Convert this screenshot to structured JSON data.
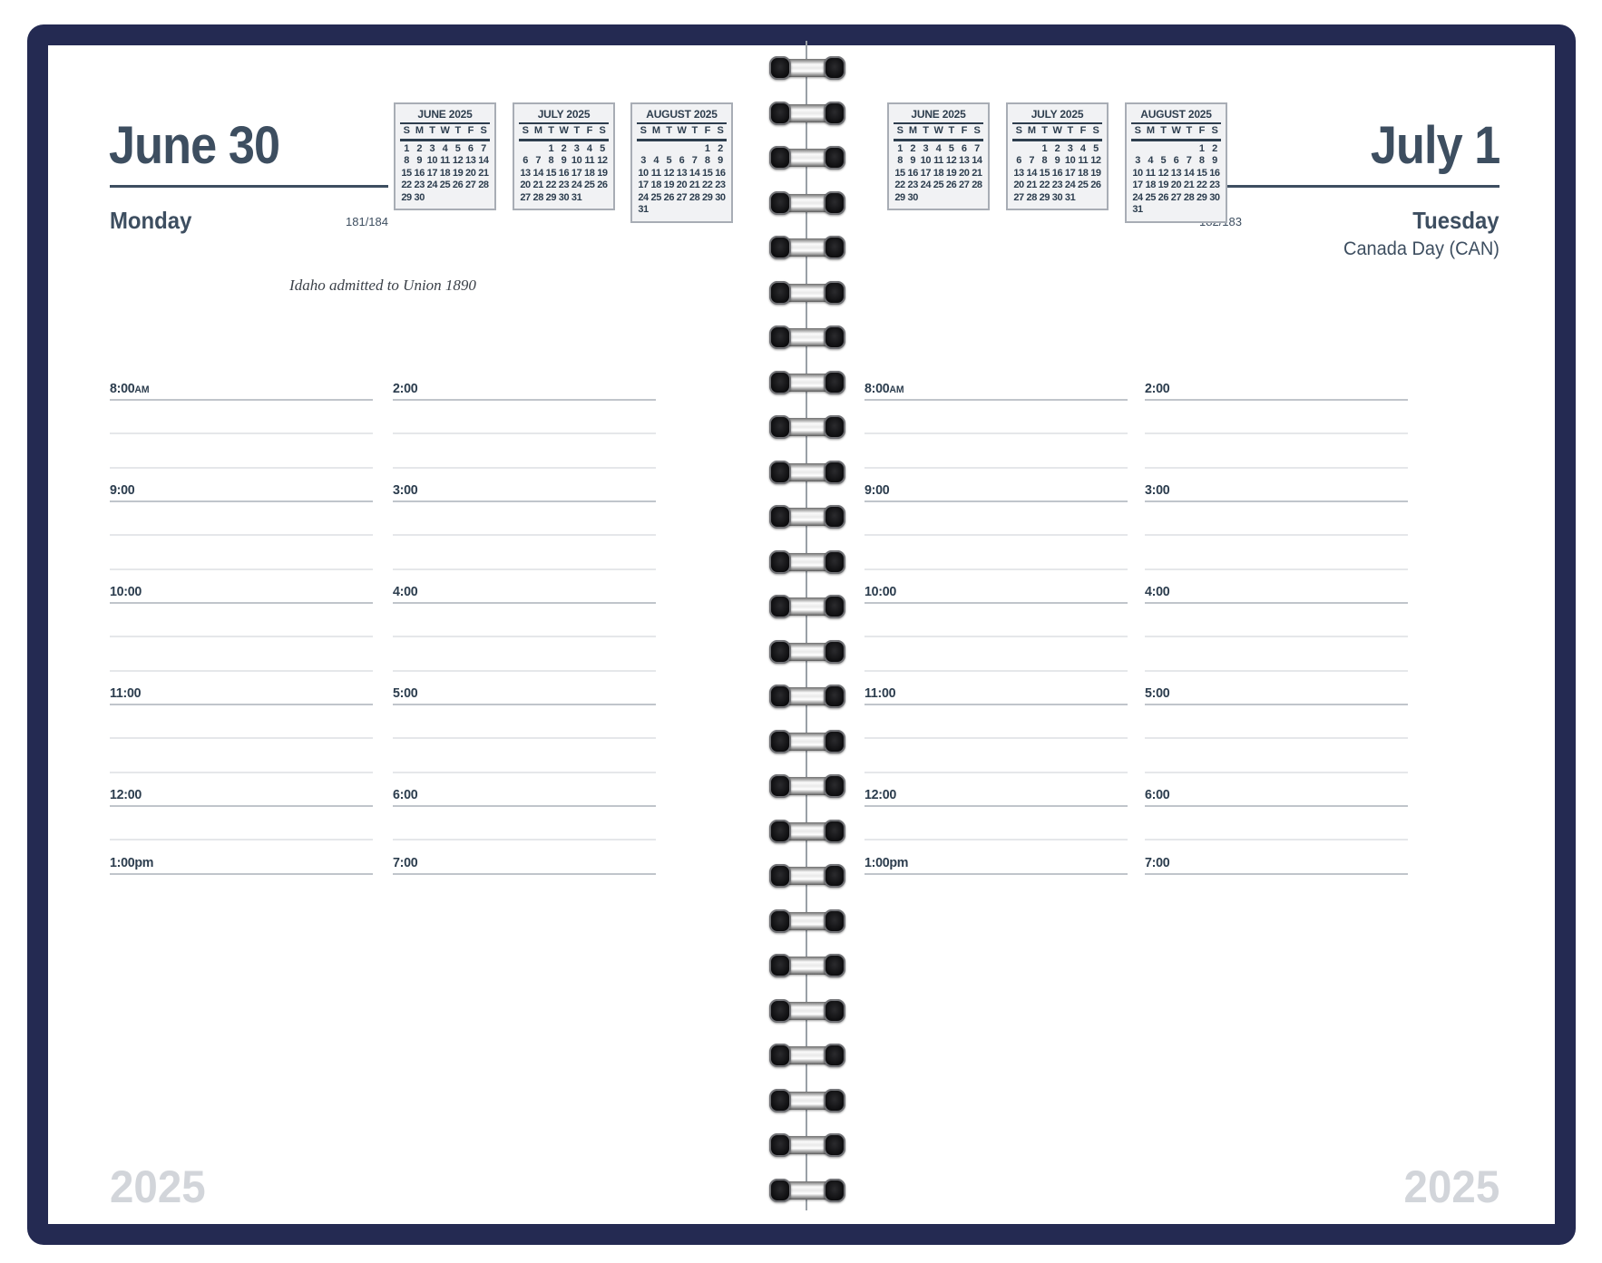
{
  "cover": {
    "year": "2025"
  },
  "left_page": {
    "date": "June 30",
    "weekday": "Monday",
    "page_number": "181/184",
    "note": "Idaho admitted to Union 1890"
  },
  "right_page": {
    "date": "July 1",
    "weekday": "Tuesday",
    "page_number": "182/183",
    "holiday": "Canada Day (CAN)"
  },
  "mini_calendars": [
    {
      "title": "JUNE 2025",
      "weekdays": [
        "S",
        "M",
        "T",
        "W",
        "T",
        "F",
        "S"
      ],
      "weeks": [
        [
          "1",
          "2",
          "3",
          "4",
          "5",
          "6",
          "7"
        ],
        [
          "8",
          "9",
          "10",
          "11",
          "12",
          "13",
          "14"
        ],
        [
          "15",
          "16",
          "17",
          "18",
          "19",
          "20",
          "21"
        ],
        [
          "22",
          "23",
          "24",
          "25",
          "26",
          "27",
          "28"
        ],
        [
          "29",
          "30",
          "",
          "",
          "",
          "",
          ""
        ]
      ]
    },
    {
      "title": "JULY 2025",
      "weekdays": [
        "S",
        "M",
        "T",
        "W",
        "T",
        "F",
        "S"
      ],
      "weeks": [
        [
          "",
          "",
          "1",
          "2",
          "3",
          "4",
          "5"
        ],
        [
          "6",
          "7",
          "8",
          "9",
          "10",
          "11",
          "12"
        ],
        [
          "13",
          "14",
          "15",
          "16",
          "17",
          "18",
          "19"
        ],
        [
          "20",
          "21",
          "22",
          "23",
          "24",
          "25",
          "26"
        ],
        [
          "27",
          "28",
          "29",
          "30",
          "31",
          "",
          ""
        ]
      ]
    },
    {
      "title": "AUGUST 2025",
      "weekdays": [
        "S",
        "M",
        "T",
        "W",
        "T",
        "F",
        "S"
      ],
      "weeks": [
        [
          "",
          "",
          "",
          "",
          "",
          "1",
          "2"
        ],
        [
          "3",
          "4",
          "5",
          "6",
          "7",
          "8",
          "9"
        ],
        [
          "10",
          "11",
          "12",
          "13",
          "14",
          "15",
          "16"
        ],
        [
          "17",
          "18",
          "19",
          "20",
          "21",
          "22",
          "23"
        ],
        [
          "24",
          "25",
          "26",
          "27",
          "28",
          "29",
          "30"
        ],
        [
          "31",
          "",
          "",
          "",
          "",
          "",
          ""
        ]
      ]
    }
  ],
  "schedule": {
    "columns": [
      {
        "slots": [
          {
            "label": "8:00",
            "suffix": "AM"
          },
          {
            "label": "9:00"
          },
          {
            "label": "10:00"
          },
          {
            "label": "11:00"
          },
          {
            "label": "12:00"
          },
          {
            "label": "1:00pm"
          }
        ]
      },
      {
        "slots": [
          {
            "label": "2:00"
          },
          {
            "label": "3:00"
          },
          {
            "label": "4:00"
          },
          {
            "label": "5:00"
          },
          {
            "label": "6:00"
          },
          {
            "label": "7:00"
          }
        ]
      }
    ]
  },
  "colors": {
    "cover_navy": "#242a52",
    "ink": "#3d4e60",
    "ink_dark": "#2c3d4e",
    "note_ink": "#3a4048",
    "line_strong": "#c0c5cb",
    "line_faint": "#e5e7ea",
    "cal_border": "#a8adb5",
    "cal_bg": "#f1f2f4",
    "cal_rule": "#2e3e4e",
    "watermark": "#d2d5da",
    "wire": "#9aa0a7"
  }
}
